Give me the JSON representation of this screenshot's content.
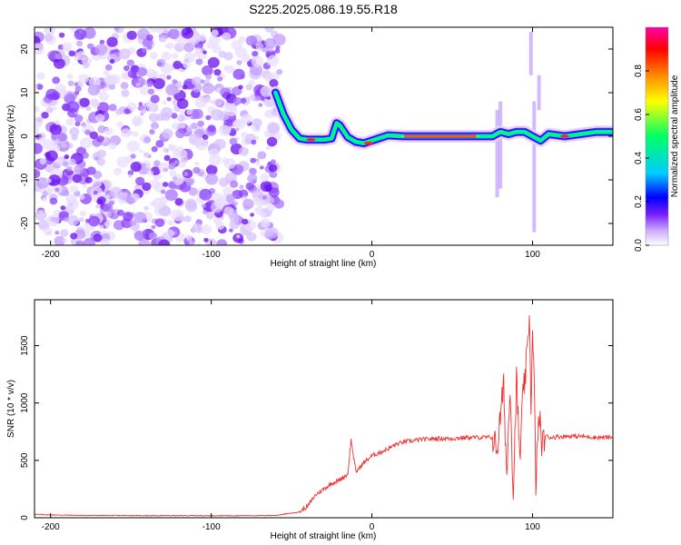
{
  "figure": {
    "title": "S225.2025.086.19.55.R18"
  },
  "chart_data": [
    {
      "type": "heatmap",
      "title": "S225.2025.086.19.55.R18",
      "xlabel": "Height of straight line (km)",
      "ylabel": "Frequency (Hz)",
      "xlim": [
        -210,
        150
      ],
      "ylim": [
        -25,
        25
      ],
      "xticks": [
        -200,
        -100,
        0,
        100
      ],
      "yticks": [
        -20,
        -10,
        0,
        10,
        20
      ],
      "colorbar": {
        "label": "Normalized spectral amplitude",
        "range": [
          0,
          1
        ],
        "ticks": [
          0.0,
          0.2,
          0.4,
          0.6,
          0.8
        ],
        "tick_labels": [
          "0.0",
          "0.2",
          "0.4",
          "0.6",
          "0.8"
        ],
        "colormap": [
          "#ffffff",
          "#c9a8ff",
          "#7a1fff",
          "#0000ff",
          "#00ccff",
          "#00ff66",
          "#ffff00",
          "#ff8800",
          "#ff0000",
          "#ff00aa"
        ]
      },
      "noise_region_x": [
        -210,
        -57
      ],
      "ridge": {
        "description_points_x": [
          -60,
          -55,
          -50,
          -45,
          -40,
          -35,
          -30,
          -25,
          -22,
          -20,
          -15,
          -10,
          -5,
          0,
          10,
          20,
          40,
          60,
          75,
          80,
          85,
          90,
          95,
          100,
          105,
          110,
          120,
          130,
          140,
          150
        ],
        "description_points_y": [
          10,
          5,
          1.5,
          -0.5,
          -0.8,
          -0.8,
          -0.8,
          -0.5,
          3,
          2.5,
          -0.2,
          -1.3,
          -1.6,
          -1.0,
          0.2,
          0,
          0,
          0,
          0,
          1.0,
          0.5,
          1.0,
          1.0,
          0,
          -1,
          0.5,
          0,
          0.5,
          1,
          1
        ],
        "peak_amplitude_x_range": [
          20,
          65
        ]
      }
    },
    {
      "type": "line",
      "title": "",
      "xlabel": "Height of straight line (km)",
      "ylabel": "SNR (10 * v/v)",
      "xlim": [
        -210,
        150
      ],
      "ylim": [
        0,
        1900
      ],
      "xticks": [
        -200,
        -100,
        0,
        100
      ],
      "yticks": [
        0,
        500,
        1000,
        1500
      ],
      "color": "#ee3333",
      "series": [
        {
          "x": [
            -210,
            -200,
            -180,
            -160,
            -140,
            -120,
            -100,
            -80,
            -60,
            -45,
            -40,
            -35,
            -30,
            -25,
            -20,
            -15,
            -13,
            -10,
            -5,
            0,
            5,
            10,
            15,
            20,
            25,
            30,
            40,
            50,
            60,
            70,
            75,
            78,
            80,
            82,
            84,
            86,
            88,
            90,
            92,
            94,
            96,
            97,
            98,
            99,
            100,
            101,
            102,
            104,
            106,
            108,
            110,
            120,
            130,
            140,
            150
          ],
          "y": [
            30,
            25,
            20,
            20,
            18,
            18,
            18,
            18,
            20,
            50,
            100,
            200,
            250,
            300,
            330,
            380,
            680,
            400,
            480,
            540,
            570,
            600,
            640,
            660,
            670,
            680,
            690,
            690,
            700,
            700,
            700,
            600,
            880,
            1150,
            350,
            1200,
            200,
            1220,
            500,
            1050,
            1300,
            1500,
            1800,
            1000,
            1550,
            1200,
            300,
            900,
            620,
            720,
            700,
            710,
            710,
            700,
            700
          ]
        }
      ]
    }
  ]
}
